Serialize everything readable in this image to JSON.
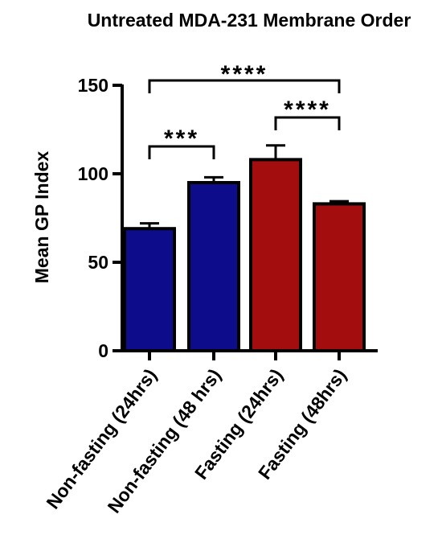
{
  "chart_data": {
    "type": "bar",
    "title": "Untreated MDA-231 Membrane Order",
    "xlabel": "",
    "ylabel": "Mean GP Index",
    "ylim": [
      0,
      150
    ],
    "yticks": [
      0,
      50,
      100,
      150
    ],
    "grid": false,
    "categories": [
      "Non-fasting (24hrs)",
      "Non-fasting (48 hrs)",
      "Fasting (24hrs)",
      "Fasting (48hrs)"
    ],
    "values": [
      69,
      95,
      108,
      83
    ],
    "errors": [
      3,
      3,
      8,
      1.5
    ],
    "bar_colors": [
      "#0d0d8c",
      "#0d0d8c",
      "#a30d0d",
      "#a30d0d"
    ],
    "significance": [
      {
        "from": 0,
        "to": 1,
        "label": "***"
      },
      {
        "from": 2,
        "to": 3,
        "label": "****"
      },
      {
        "from": 0,
        "to": 3,
        "label": "****"
      }
    ]
  }
}
